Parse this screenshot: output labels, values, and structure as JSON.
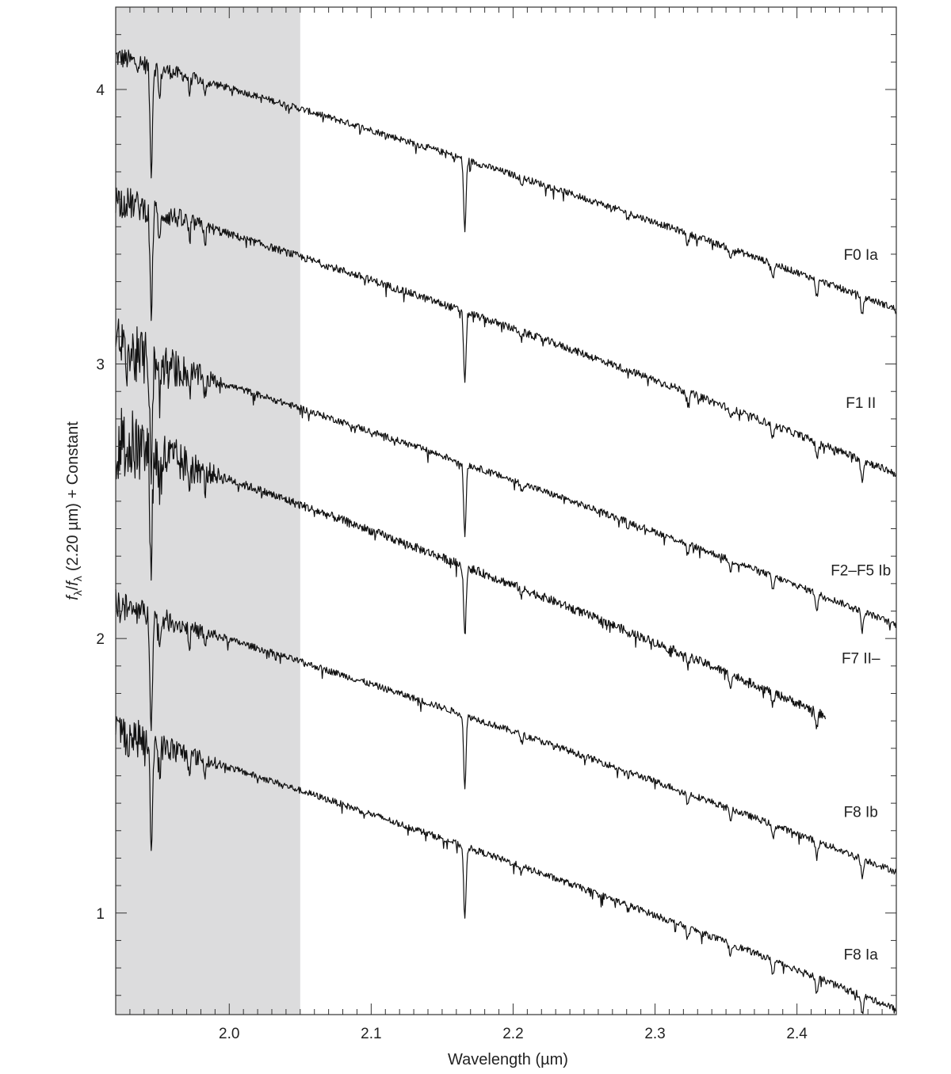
{
  "chart_data": {
    "type": "line",
    "title": "",
    "xlabel": "Wavelength (µm)",
    "ylabel_parts": {
      "f": "f",
      "lambda": "λ",
      "slash": "/",
      "ref": "(2.20 µm) + Constant"
    },
    "xlim": [
      1.92,
      2.47
    ],
    "ylim": [
      0.63,
      4.3
    ],
    "x_ticks": [
      {
        "value": 2.0,
        "label": "2.0"
      },
      {
        "value": 2.1,
        "label": "2.1"
      },
      {
        "value": 2.2,
        "label": "2.2"
      },
      {
        "value": 2.3,
        "label": "2.3"
      },
      {
        "value": 2.4,
        "label": "2.4"
      }
    ],
    "y_ticks": [
      {
        "value": 1,
        "label": "1"
      },
      {
        "value": 2,
        "label": "2"
      },
      {
        "value": 3,
        "label": "3"
      },
      {
        "value": 4,
        "label": "4"
      }
    ],
    "x_minor_step": 0.01,
    "y_minor_step": 0.1,
    "shaded_region": {
      "x_start": 1.92,
      "x_end": 2.05,
      "color": "#dcdcdd"
    },
    "line_color": "#111111",
    "grid": false,
    "series": [
      {
        "name": "F0 Ia",
        "x_start": 1.92,
        "x_end": 2.47,
        "y_start": 4.12,
        "y_end": 3.2,
        "curvature": 0.3,
        "noise": 0.012,
        "blue_noise": 0.03,
        "label_x": 2.445,
        "label_y": 3.38
      },
      {
        "name": "F1 II",
        "x_start": 1.92,
        "x_end": 2.47,
        "y_start": 3.6,
        "y_end": 2.6,
        "curvature": 0.3,
        "noise": 0.014,
        "blue_noise": 0.05,
        "label_x": 2.445,
        "label_y": 2.84
      },
      {
        "name": "F2–F5 Ib",
        "x_start": 1.92,
        "x_end": 2.47,
        "y_start": 3.05,
        "y_end": 2.05,
        "curvature": 0.28,
        "noise": 0.012,
        "blue_noise": 0.12,
        "label_x": 2.445,
        "label_y": 2.23
      },
      {
        "name": "F7 II–",
        "x_start": 1.92,
        "x_end": 2.42,
        "y_start": 2.72,
        "y_end": 1.72,
        "curvature": 0.28,
        "noise": 0.016,
        "blue_noise": 0.14,
        "label_x": 2.445,
        "label_y": 1.91
      },
      {
        "name": "F8 Ib",
        "x_start": 1.92,
        "x_end": 2.47,
        "y_start": 2.12,
        "y_end": 1.15,
        "curvature": 0.28,
        "noise": 0.012,
        "blue_noise": 0.05,
        "label_x": 2.445,
        "label_y": 1.35
      },
      {
        "name": "F8 Ia",
        "x_start": 1.92,
        "x_end": 2.47,
        "y_start": 1.66,
        "y_end": 0.65,
        "curvature": 0.28,
        "noise": 0.012,
        "blue_noise": 0.07,
        "label_x": 2.445,
        "label_y": 0.83
      }
    ],
    "absorption_lines": [
      {
        "x": 1.945,
        "depth": 0.38,
        "width": 0.0012
      },
      {
        "x": 1.951,
        "depth": 0.12,
        "width": 0.001
      },
      {
        "x": 1.972,
        "depth": 0.06,
        "width": 0.001
      },
      {
        "x": 1.983,
        "depth": 0.06,
        "width": 0.001
      },
      {
        "x": 2.166,
        "depth": 0.26,
        "width": 0.0012
      },
      {
        "x": 2.206,
        "depth": 0.03,
        "width": 0.001
      },
      {
        "x": 2.281,
        "depth": 0.02,
        "width": 0.001
      },
      {
        "x": 2.323,
        "depth": 0.04,
        "width": 0.0012
      },
      {
        "x": 2.353,
        "depth": 0.04,
        "width": 0.0012
      },
      {
        "x": 2.383,
        "depth": 0.05,
        "width": 0.0012
      },
      {
        "x": 2.414,
        "depth": 0.06,
        "width": 0.0012
      },
      {
        "x": 2.446,
        "depth": 0.07,
        "width": 0.0012
      }
    ]
  }
}
